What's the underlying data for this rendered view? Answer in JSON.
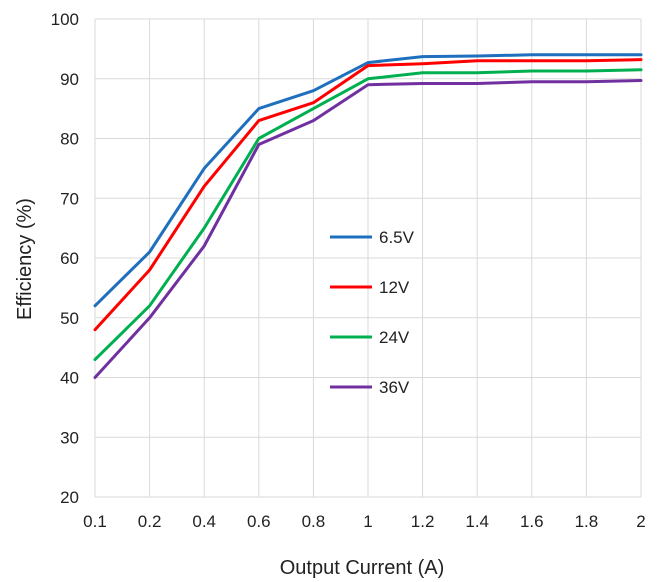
{
  "chart_data": {
    "type": "line",
    "title": "",
    "xlabel": "Output Current (A)",
    "ylabel": "Efficiency (%)",
    "categories": [
      "0.1",
      "0.2",
      "0.4",
      "0.6",
      "0.8",
      "1",
      "1.2",
      "1.4",
      "1.6",
      "1.8",
      "2"
    ],
    "ylim": [
      20,
      100
    ],
    "yticks": [
      "20",
      "30",
      "40",
      "50",
      "60",
      "70",
      "80",
      "90",
      "100"
    ],
    "grid": true,
    "legend_position": "center",
    "series": [
      {
        "name": "6.5V",
        "color": "#1f6fbf",
        "values": [
          52,
          61,
          75,
          85,
          88,
          92.7,
          93.7,
          93.8,
          94,
          94,
          94
        ]
      },
      {
        "name": "12V",
        "color": "#ff0000",
        "values": [
          48,
          58,
          72,
          83,
          86,
          92.2,
          92.5,
          93,
          93,
          93,
          93.2
        ]
      },
      {
        "name": "24V",
        "color": "#00b050",
        "values": [
          43,
          52,
          65,
          80,
          85,
          90,
          91,
          91,
          91.3,
          91.3,
          91.5
        ]
      },
      {
        "name": "36V",
        "color": "#7030a0",
        "values": [
          40,
          50,
          62,
          79,
          83,
          89,
          89.2,
          89.2,
          89.5,
          89.5,
          89.7
        ]
      }
    ]
  }
}
